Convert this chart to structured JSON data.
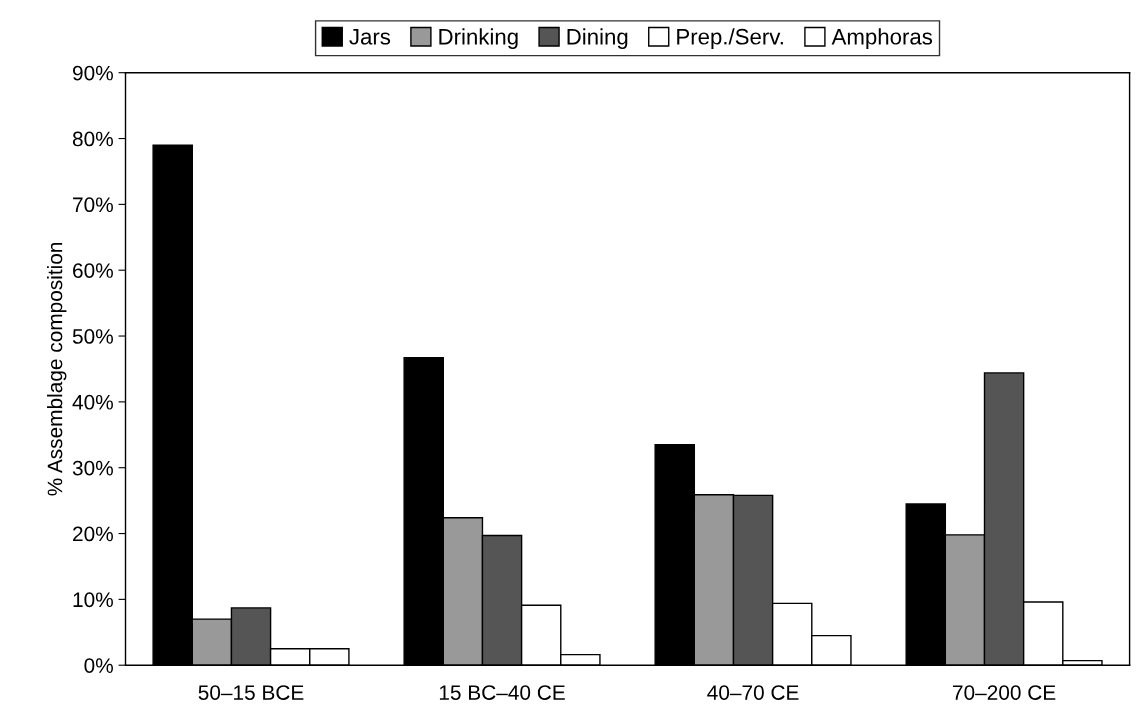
{
  "chart_data": {
    "type": "bar",
    "ylabel": "% Assemblage composition",
    "categories": [
      "50–15 BCE",
      "15 BC–40 CE",
      "40–70 CE",
      "70–200 CE"
    ],
    "series": [
      {
        "name": "Jars",
        "color": "#000000",
        "values": [
          79,
          46.7,
          33.5,
          24.5
        ]
      },
      {
        "name": "Drinking",
        "color": "#999999",
        "values": [
          7.0,
          22.4,
          25.9,
          19.8
        ]
      },
      {
        "name": "Dining",
        "color": "#555555",
        "values": [
          8.7,
          19.7,
          25.8,
          44.4
        ]
      },
      {
        "name": "Prep./Serv.",
        "color": "#ffffff",
        "values": [
          2.5,
          9.1,
          9.4,
          9.6
        ]
      },
      {
        "name": "Amphoras",
        "color": "#ffffff",
        "values": [
          2.5,
          1.6,
          4.5,
          0.7
        ]
      }
    ],
    "ylim": [
      0,
      90
    ],
    "yticks": [
      {
        "value": 0,
        "label": "0%"
      },
      {
        "value": 10,
        "label": "10%"
      },
      {
        "value": 20,
        "label": "20%"
      },
      {
        "value": 30,
        "label": "30%"
      },
      {
        "value": 40,
        "label": "40%"
      },
      {
        "value": 50,
        "label": "50%"
      },
      {
        "value": 60,
        "label": "60%"
      },
      {
        "value": 70,
        "label": "70%"
      },
      {
        "value": 80,
        "label": "80%"
      },
      {
        "value": 90,
        "label": "90%"
      }
    ],
    "grid": false,
    "legend": "top"
  }
}
